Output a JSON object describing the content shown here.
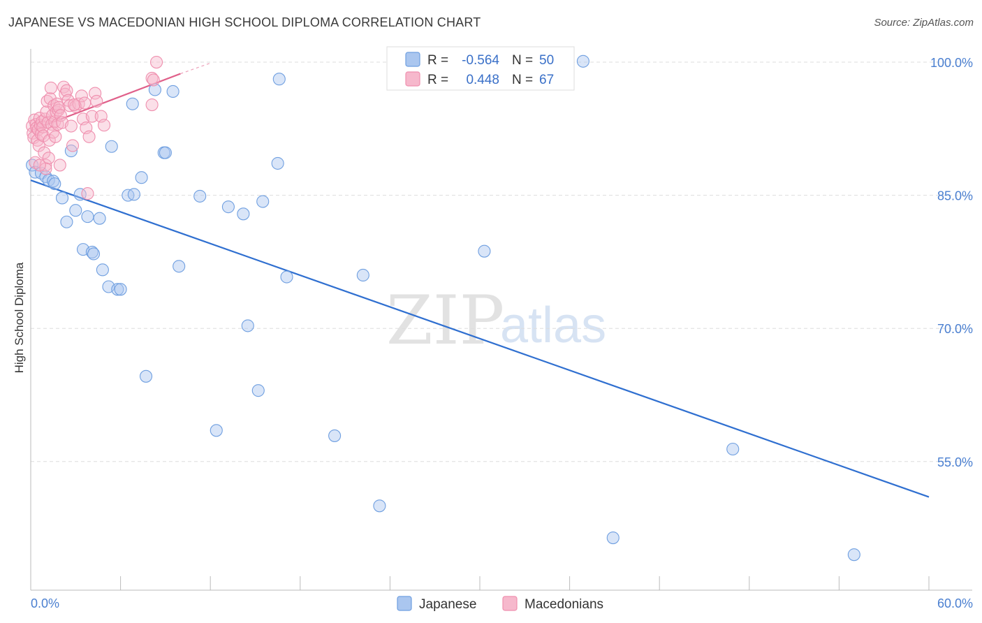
{
  "chart_data": {
    "type": "scatter",
    "title": "JAPANESE VS MACEDONIAN HIGH SCHOOL DIPLOMA CORRELATION CHART",
    "source": "Source: ZipAtlas.com",
    "ylabel": "High School Diploma",
    "xlabel": "",
    "xlim": [
      0,
      60
    ],
    "ylim": [
      40.5,
      101.5
    ],
    "x_tick_labels": [
      {
        "value": 0,
        "label": "0.0%"
      },
      {
        "value": 60,
        "label": "60.0%"
      }
    ],
    "x_minor_ticks": [
      0,
      6,
      12,
      18,
      24,
      30,
      36,
      42,
      48,
      54,
      60
    ],
    "y_ticks": [
      {
        "value": 100,
        "label": "100.0%"
      },
      {
        "value": 85,
        "label": "85.0%"
      },
      {
        "value": 70,
        "label": "70.0%"
      },
      {
        "value": 55,
        "label": "55.0%"
      }
    ],
    "grid": true,
    "watermark": {
      "zip": "ZIP",
      "atlas": "atlas"
    },
    "legend": {
      "position": "top-center",
      "rows": [
        {
          "series": "Japanese",
          "r_label": "R =",
          "r_value": "-0.564",
          "n_label": "N =",
          "n_value": "50"
        },
        {
          "series": "Macedonians",
          "r_label": "R =",
          "r_value": "0.448",
          "n_label": "N =",
          "n_value": "67"
        }
      ]
    },
    "series": [
      {
        "name": "Japanese",
        "color": "#6f9fe0",
        "fill": "#aac6ef",
        "trend_color": "#2f6fd0",
        "trend": {
          "x0": 0,
          "y0": 86.7,
          "x1": 60,
          "y1": 51.0
        },
        "points": [
          [
            0.1,
            88.4
          ],
          [
            0.3,
            87.6
          ],
          [
            0.7,
            87.5
          ],
          [
            1.0,
            87.1
          ],
          [
            1.2,
            86.7
          ],
          [
            1.5,
            86.6
          ],
          [
            1.6,
            86.3
          ],
          [
            2.1,
            84.7
          ],
          [
            2.4,
            82.0
          ],
          [
            2.7,
            90.0
          ],
          [
            3.0,
            83.3
          ],
          [
            3.3,
            85.1
          ],
          [
            3.5,
            78.9
          ],
          [
            3.8,
            82.6
          ],
          [
            4.1,
            78.6
          ],
          [
            4.2,
            78.4
          ],
          [
            4.6,
            82.4
          ],
          [
            4.8,
            76.6
          ],
          [
            5.2,
            74.7
          ],
          [
            5.4,
            90.5
          ],
          [
            5.8,
            74.4
          ],
          [
            6.0,
            74.4
          ],
          [
            6.5,
            85.0
          ],
          [
            6.9,
            85.1
          ],
          [
            6.8,
            95.3
          ],
          [
            7.4,
            87.0
          ],
          [
            7.7,
            64.6
          ],
          [
            8.3,
            96.9
          ],
          [
            8.9,
            89.8
          ],
          [
            9.0,
            89.8
          ],
          [
            9.5,
            96.7
          ],
          [
            9.9,
            77.0
          ],
          [
            11.3,
            84.9
          ],
          [
            12.4,
            58.5
          ],
          [
            13.2,
            83.7
          ],
          [
            14.2,
            82.9
          ],
          [
            14.5,
            70.3
          ],
          [
            15.2,
            63.0
          ],
          [
            15.5,
            84.3
          ],
          [
            16.5,
            88.6
          ],
          [
            16.6,
            98.1
          ],
          [
            17.1,
            75.8
          ],
          [
            20.3,
            57.9
          ],
          [
            22.2,
            76.0
          ],
          [
            23.3,
            50.0
          ],
          [
            30.3,
            78.7
          ],
          [
            36.9,
            100.1
          ],
          [
            38.9,
            46.4
          ],
          [
            46.9,
            56.4
          ],
          [
            55.0,
            44.5
          ]
        ]
      },
      {
        "name": "Macedonians",
        "color": "#ef8fae",
        "fill": "#f6b8cc",
        "trend_color": "#e0608a",
        "trend": {
          "x0": 0,
          "y0": 92.3,
          "x1": 10.0,
          "y1": 98.7
        },
        "trend_dashed_extension": {
          "x0": 10.0,
          "y0": 98.7,
          "x1": 12.0,
          "y1": 99.9
        },
        "points": [
          [
            0.1,
            92.8
          ],
          [
            0.15,
            92.0
          ],
          [
            0.2,
            91.5
          ],
          [
            0.25,
            93.5
          ],
          [
            0.3,
            88.7
          ],
          [
            0.35,
            93.0
          ],
          [
            0.4,
            92.6
          ],
          [
            0.45,
            91.2
          ],
          [
            0.5,
            92.4
          ],
          [
            0.55,
            90.6
          ],
          [
            0.6,
            93.7
          ],
          [
            0.65,
            92.9
          ],
          [
            0.7,
            91.9
          ],
          [
            0.75,
            93.3
          ],
          [
            0.8,
            92.7
          ],
          [
            0.85,
            91.7
          ],
          [
            0.9,
            89.8
          ],
          [
            0.95,
            93.6
          ],
          [
            1.0,
            88.4
          ],
          [
            1.05,
            94.4
          ],
          [
            1.1,
            95.6
          ],
          [
            1.15,
            93.2
          ],
          [
            1.2,
            89.2
          ],
          [
            1.25,
            91.2
          ],
          [
            1.3,
            95.9
          ],
          [
            1.35,
            97.1
          ],
          [
            1.4,
            93.0
          ],
          [
            1.45,
            94.0
          ],
          [
            1.5,
            92.1
          ],
          [
            1.55,
            95.1
          ],
          [
            1.6,
            93.3
          ],
          [
            1.65,
            91.6
          ],
          [
            1.7,
            94.4
          ],
          [
            1.75,
            95.3
          ],
          [
            1.8,
            93.0
          ],
          [
            1.85,
            94.6
          ],
          [
            1.9,
            94.9
          ],
          [
            1.95,
            88.4
          ],
          [
            2.0,
            94.0
          ],
          [
            2.1,
            93.2
          ],
          [
            2.2,
            97.2
          ],
          [
            2.3,
            96.4
          ],
          [
            2.4,
            96.8
          ],
          [
            2.5,
            95.7
          ],
          [
            2.6,
            95.1
          ],
          [
            2.7,
            92.8
          ],
          [
            2.8,
            90.6
          ],
          [
            3.0,
            95.0
          ],
          [
            3.2,
            95.3
          ],
          [
            3.4,
            96.2
          ],
          [
            3.5,
            93.6
          ],
          [
            3.6,
            95.4
          ],
          [
            3.7,
            92.6
          ],
          [
            3.8,
            85.2
          ],
          [
            3.9,
            91.6
          ],
          [
            4.1,
            93.9
          ],
          [
            4.3,
            96.5
          ],
          [
            4.4,
            95.6
          ],
          [
            4.7,
            93.9
          ],
          [
            4.9,
            92.9
          ],
          [
            8.1,
            95.2
          ],
          [
            8.1,
            98.2
          ],
          [
            8.2,
            98.0
          ],
          [
            8.4,
            100.0
          ],
          [
            1.0,
            88.0
          ],
          [
            0.6,
            88.4
          ],
          [
            2.9,
            95.2
          ]
        ]
      }
    ]
  },
  "bottom_legend": [
    {
      "label": "Japanese"
    },
    {
      "label": "Macedonians"
    }
  ]
}
